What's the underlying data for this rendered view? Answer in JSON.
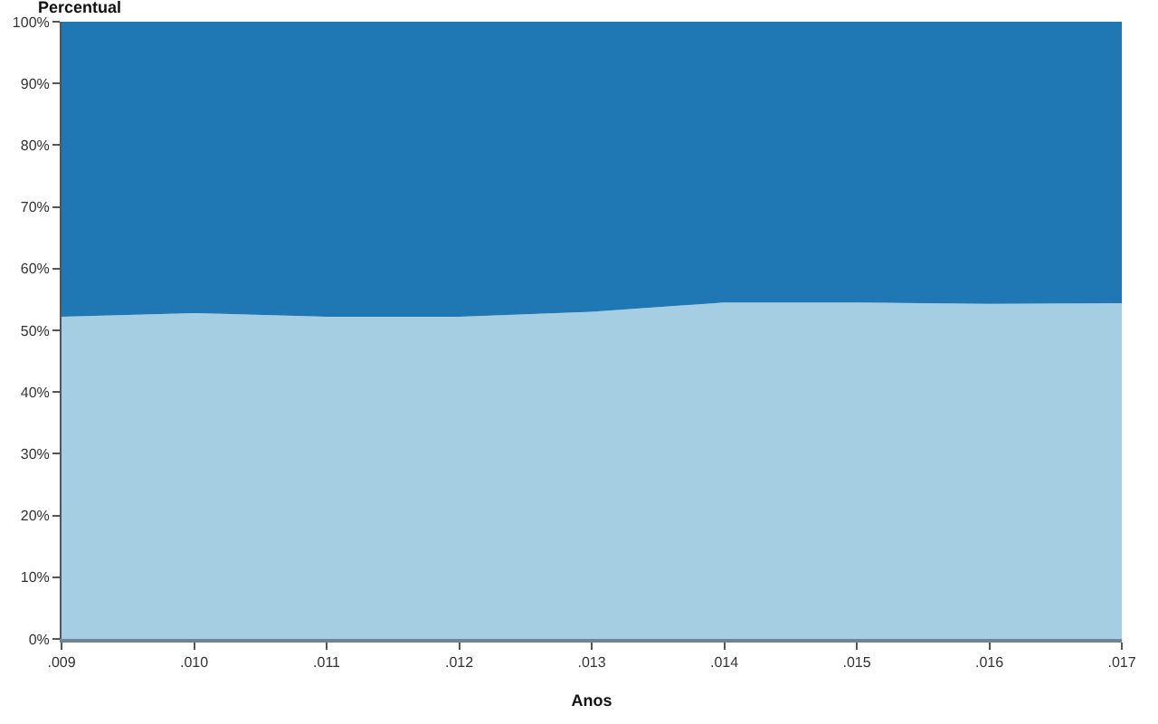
{
  "chart_data": {
    "type": "area",
    "xlabel": "Anos",
    "ylabel": "Percentual",
    "categories": [
      ".009",
      ".010",
      ".011",
      ".012",
      ".013",
      ".014",
      ".015",
      ".016",
      ".017"
    ],
    "stacked": true,
    "series": [
      {
        "color": "#a6cee3",
        "values": [
          52.2,
          52.8,
          52.2,
          52.2,
          53.0,
          54.5,
          54.5,
          54.3,
          54.4
        ]
      },
      {
        "color": "#1f77b4",
        "values": [
          47.8,
          47.2,
          47.8,
          47.8,
          47.0,
          45.5,
          45.5,
          45.7,
          45.6
        ]
      }
    ],
    "ylim": [
      0,
      100
    ],
    "yticks": [
      {
        "value": 0,
        "label": "0%"
      },
      {
        "value": 10,
        "label": "10%"
      },
      {
        "value": 20,
        "label": "20%"
      },
      {
        "value": 30,
        "label": "30%"
      },
      {
        "value": 40,
        "label": "40%"
      },
      {
        "value": 50,
        "label": "50%"
      },
      {
        "value": 60,
        "label": "60%"
      },
      {
        "value": 70,
        "label": "70%"
      },
      {
        "value": 80,
        "label": "80%"
      },
      {
        "value": 90,
        "label": "90%"
      },
      {
        "value": 100,
        "label": "100%"
      }
    ]
  }
}
